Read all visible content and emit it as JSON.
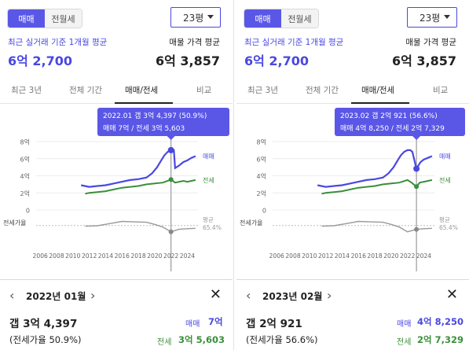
{
  "colors": {
    "accent": "#5a57e6",
    "sale": "#4a48e0",
    "jeonse": "#3a8f3a",
    "ratio": "#9a9a9a"
  },
  "panels": [
    {
      "seg": [
        "매매",
        "전월세"
      ],
      "size": "23평",
      "actual_label": "최근 실거래 기준 1개월 평균",
      "actual_value": "6억 2,700",
      "listing_label": "매물 가격 평균",
      "listing_value": "6억 3,857",
      "tabs": [
        "최근 3년",
        "전체 기간",
        "매매/전세",
        "비교"
      ],
      "active_tab": 2,
      "tooltip": {
        "line1": "2022.01  갭 3억 4,397 (50.9%)",
        "line2": "매매 7억 / 전세 3억 5,603"
      },
      "y_ticks": [
        "8억",
        "6억",
        "4억",
        "2억",
        "0"
      ],
      "x_ticks": [
        "2006",
        "2008",
        "2010",
        "2012",
        "2014",
        "2016",
        "2018",
        "2020",
        "2022",
        "2024"
      ],
      "label_sale": "매매",
      "label_jeon": "전세",
      "label_avg": "평균",
      "label_avg_pct": "65.4%",
      "label_ratio": "전세가율",
      "detail": {
        "date": "2022년 01월",
        "gap": "갭 3억 4,397",
        "ratio": "(전세가율 50.9%)",
        "sale_label": "매매",
        "sale_value": "7억",
        "jeon_label": "전세",
        "jeon_value": "3억 5,603"
      }
    },
    {
      "seg": [
        "매매",
        "전월세"
      ],
      "size": "23평",
      "actual_label": "최근 실거래 기준 1개월 평균",
      "actual_value": "6억 2,700",
      "listing_label": "매물 가격 평균",
      "listing_value": "6억 3,857",
      "tabs": [
        "최근 3년",
        "전체 기간",
        "매매/전세",
        "비교"
      ],
      "active_tab": 2,
      "tooltip": {
        "line1": "2023.02  갭 2억 921 (56.6%)",
        "line2": "매매 4억 8,250 / 전세 2억 7,329"
      },
      "y_ticks": [
        "8억",
        "6억",
        "4억",
        "2억",
        "0"
      ],
      "x_ticks": [
        "2006",
        "2008",
        "2010",
        "2012",
        "2014",
        "2016",
        "2018",
        "2020",
        "2022",
        "2024"
      ],
      "label_sale": "매매",
      "label_jeon": "전세",
      "label_avg": "평균",
      "label_avg_pct": "65.4%",
      "label_ratio": "전세가율",
      "detail": {
        "date": "2023년 02월",
        "gap": "갭 2억 921",
        "ratio": "(전세가율 56.6%)",
        "sale_label": "매매",
        "sale_value": "4억 8,250",
        "jeon_label": "전세",
        "jeon_value": "2억 7,329"
      }
    }
  ],
  "chart_data": [
    {
      "type": "line",
      "x_range": [
        2005.5,
        2025.3
      ],
      "y_range": [
        0,
        8
      ],
      "y_unit": "억",
      "avg_ratio": 65.4,
      "selected": {
        "x": 2022.0,
        "sale": 7.0,
        "jeon": 3.56,
        "ratio": 50.9
      },
      "series": [
        {
          "name": "매매",
          "x": [
            2011.0,
            2012.0,
            2013.0,
            2014.0,
            2015.0,
            2016.0,
            2017.0,
            2018.0,
            2019.0,
            2019.7,
            2020.3,
            2020.8,
            2021.2,
            2021.6,
            2022.0,
            2022.35,
            2022.5,
            2023.0,
            2023.5,
            2024.0,
            2024.5,
            2025.0
          ],
          "values": [
            2.9,
            2.7,
            2.8,
            2.9,
            3.1,
            3.3,
            3.5,
            3.6,
            3.8,
            4.3,
            5.0,
            5.8,
            6.4,
            6.8,
            7.0,
            7.0,
            4.9,
            5.2,
            5.6,
            5.8,
            6.1,
            6.3
          ]
        },
        {
          "name": "전세",
          "x": [
            2011.5,
            2012.0,
            2013.0,
            2014.0,
            2015.0,
            2016.0,
            2017.0,
            2018.0,
            2019.0,
            2020.0,
            2021.0,
            2022.0,
            2022.5,
            2023.0,
            2023.5,
            2024.0,
            2024.5,
            2025.0
          ],
          "values": [
            1.9,
            2.0,
            2.1,
            2.2,
            2.4,
            2.6,
            2.7,
            2.8,
            3.0,
            3.1,
            3.2,
            3.56,
            3.2,
            3.3,
            3.4,
            3.3,
            3.4,
            3.5
          ]
        }
      ],
      "ratio_series": {
        "name": "전세가율",
        "x": [
          2011.5,
          2013.0,
          2014.5,
          2016.0,
          2017.5,
          2019.0,
          2020.0,
          2021.0,
          2022.0,
          2023.0,
          2024.0,
          2025.0
        ],
        "values": [
          64,
          65,
          70,
          75,
          74,
          73,
          68,
          62,
          51,
          57,
          58,
          59
        ]
      }
    },
    {
      "type": "line",
      "x_range": [
        2005.5,
        2025.3
      ],
      "y_range": [
        0,
        8
      ],
      "y_unit": "억",
      "avg_ratio": 65.4,
      "selected": {
        "x": 2023.1,
        "sale": 4.83,
        "jeon": 2.73,
        "ratio": 56.6
      },
      "series": [
        {
          "name": "매매",
          "x": [
            2011.0,
            2012.0,
            2013.0,
            2014.0,
            2015.0,
            2016.0,
            2017.0,
            2018.0,
            2019.0,
            2019.7,
            2020.3,
            2020.8,
            2021.2,
            2021.6,
            2022.0,
            2022.35,
            2022.6,
            2023.1,
            2023.6,
            2024.0,
            2024.5,
            2025.0
          ],
          "values": [
            2.9,
            2.7,
            2.8,
            2.9,
            3.1,
            3.3,
            3.5,
            3.6,
            3.8,
            4.3,
            5.0,
            5.8,
            6.4,
            6.8,
            7.0,
            7.0,
            6.8,
            4.83,
            5.6,
            5.9,
            6.1,
            6.3
          ]
        },
        {
          "name": "전세",
          "x": [
            2011.5,
            2012.0,
            2013.0,
            2014.0,
            2015.0,
            2016.0,
            2017.0,
            2018.0,
            2019.0,
            2020.0,
            2021.0,
            2022.0,
            2022.5,
            2023.1,
            2023.5,
            2024.0,
            2024.5,
            2025.0
          ],
          "values": [
            1.9,
            2.0,
            2.1,
            2.2,
            2.4,
            2.6,
            2.7,
            2.8,
            3.0,
            3.1,
            3.2,
            3.5,
            3.2,
            2.73,
            3.2,
            3.3,
            3.4,
            3.5
          ]
        }
      ],
      "ratio_series": {
        "name": "전세가율",
        "x": [
          2011.5,
          2013.0,
          2014.5,
          2016.0,
          2017.5,
          2019.0,
          2020.0,
          2021.0,
          2022.0,
          2023.1,
          2024.0,
          2025.0
        ],
        "values": [
          64,
          65,
          70,
          75,
          74,
          73,
          68,
          62,
          51,
          56.6,
          58,
          59
        ]
      }
    }
  ]
}
